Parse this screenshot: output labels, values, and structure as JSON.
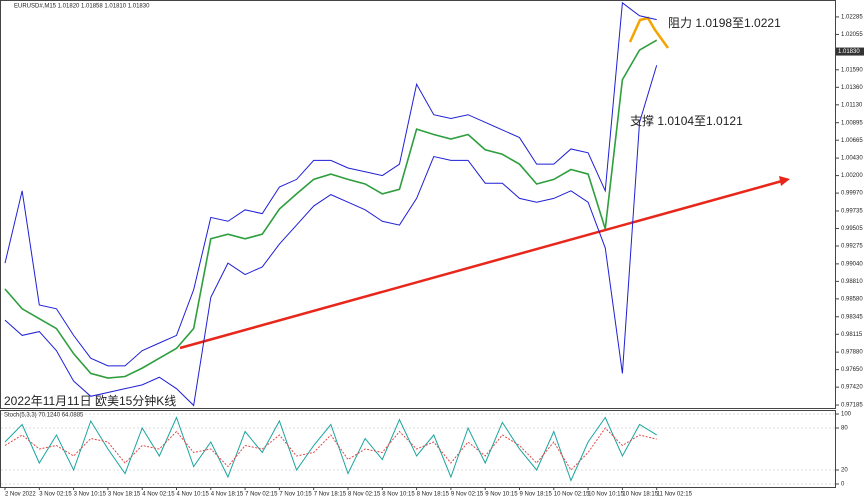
{
  "chart_data": {
    "type": "line",
    "title": "EURUSD#,M15  1.01820 1.01858 1.01810 1.01830",
    "annotations": [
      "阻力 1.0198至1.0221",
      "支撑 1.0104至1.0121",
      "2022年11月11日 欧美15分钟K线"
    ],
    "categories": [
      "2 Nov 2022",
      null,
      "3 Nov 02:15",
      null,
      "3 Nov 10:15",
      null,
      "3 Nov 18:15",
      null,
      "4 Nov 02:15",
      null,
      "4 Nov 10:15",
      null,
      "4 Nov 18:15",
      null,
      "7 Nov 02:15",
      null,
      "7 Nov 10:15",
      null,
      "7 Nov 18:15",
      null,
      "8 Nov 02:15",
      null,
      "8 Nov 10:15",
      null,
      "8 Nov 18:15",
      null,
      "9 Nov 02:15",
      null,
      "9 Nov 10:15",
      null,
      "9 Nov 18:15",
      null,
      "10 Nov 02:15",
      null,
      "10 Nov 10:15",
      null,
      "10 Nov 18:15",
      null,
      "11 Nov 02:15"
    ],
    "series": [
      {
        "name": "price",
        "color": "#2e9e3e",
        "values": [
          0.9871,
          0.9845,
          0.9832,
          0.9819,
          0.9786,
          0.976,
          0.9754,
          0.9756,
          0.9767,
          0.978,
          0.9793,
          0.9819,
          0.9937,
          0.9943,
          0.9937,
          0.9943,
          0.9976,
          0.9996,
          1.0015,
          1.0022,
          1.0015,
          1.0009,
          0.9996,
          1.0002,
          1.0081,
          1.0074,
          1.0068,
          1.0074,
          1.0054,
          1.0048,
          1.0035,
          1.0009,
          1.0015,
          1.0028,
          1.0022,
          0.995,
          1.0146,
          1.0185,
          1.0198
        ]
      },
      {
        "name": "upper",
        "color": "#1f1fd6",
        "values": [
          0.9905,
          1.0,
          0.985,
          0.9845,
          0.981,
          0.978,
          0.977,
          0.977,
          0.979,
          0.98,
          0.981,
          0.987,
          0.9965,
          0.996,
          0.9975,
          0.997,
          1.0005,
          1.0015,
          1.004,
          1.004,
          1.003,
          1.0025,
          1.002,
          1.0035,
          1.014,
          1.01,
          1.0095,
          1.01,
          1.009,
          1.008,
          1.007,
          1.0035,
          1.0035,
          1.0055,
          1.005,
          1.0,
          1.0247,
          1.023,
          1.0225
        ]
      },
      {
        "name": "lower",
        "color": "#1f1fd6",
        "values": [
          0.983,
          0.981,
          0.9815,
          0.979,
          0.975,
          0.973,
          0.9735,
          0.974,
          0.9745,
          0.9755,
          0.974,
          0.9718,
          0.986,
          0.9905,
          0.989,
          0.99,
          0.993,
          0.9955,
          0.998,
          0.9995,
          0.9985,
          0.9975,
          0.996,
          0.9955,
          0.999,
          1.0045,
          1.004,
          1.004,
          1.001,
          1.001,
          0.999,
          0.9985,
          0.999,
          1.0,
          0.9985,
          0.9925,
          0.976,
          1.009,
          1.0165
        ]
      }
    ],
    "ylim": [
      0.97146,
      1.02468
    ],
    "yticks": [
      1.02285,
      1.02055,
      1.0183,
      {
        "value": 1.0159,
        "label": "1.01590"
      },
      {
        "value": 1.0136,
        "label": "1.01360"
      },
      {
        "value": 1.0113,
        "label": "1.01130"
      },
      1.00895,
      1.00665,
      {
        "value": 1.0043,
        "label": "1.00430"
      },
      {
        "value": 1.002,
        "label": "1.00200"
      },
      {
        "value": 0.9997,
        "label": "0.99970"
      },
      0.99735,
      {
        "value": 0.99505,
        "label": "0.99505"
      },
      0.99275,
      {
        "value": 0.9904,
        "label": "0.99040"
      },
      {
        "value": 0.9881,
        "label": "0.98810"
      },
      {
        "value": 0.9858,
        "label": "0.98580"
      },
      0.98345,
      0.98115,
      {
        "value": 0.9788,
        "label": "0.97880"
      },
      {
        "value": 0.9765,
        "label": "0.97650"
      },
      {
        "value": 0.9742,
        "label": "0.97420"
      },
      0.97185
    ],
    "current_price": 1.0183,
    "current_price_label": "1.01830",
    "stoch": {
      "title": "Stoch(5,3,3) 70.1240 64.0885",
      "ylim": [
        0,
        100
      ],
      "yticks": [
        100,
        80,
        20,
        0
      ],
      "series": [
        {
          "name": "%K",
          "color": "#1aa5a0",
          "values": [
            60,
            85,
            30,
            70,
            20,
            90,
            50,
            15,
            80,
            40,
            95,
            25,
            60,
            10,
            75,
            45,
            90,
            20,
            55,
            85,
            15,
            65,
            35,
            92,
            40,
            70,
            10,
            80,
            30,
            88,
            50,
            20,
            75,
            5,
            60,
            95,
            40,
            85,
            70.124
          ]
        },
        {
          "name": "%D",
          "color": "#e04848",
          "values": [
            55,
            70,
            50,
            55,
            40,
            65,
            60,
            30,
            55,
            50,
            75,
            45,
            50,
            25,
            55,
            50,
            70,
            40,
            45,
            70,
            35,
            50,
            45,
            75,
            50,
            60,
            30,
            60,
            40,
            70,
            55,
            30,
            60,
            20,
            45,
            80,
            55,
            70,
            64.0885
          ]
        }
      ]
    }
  }
}
